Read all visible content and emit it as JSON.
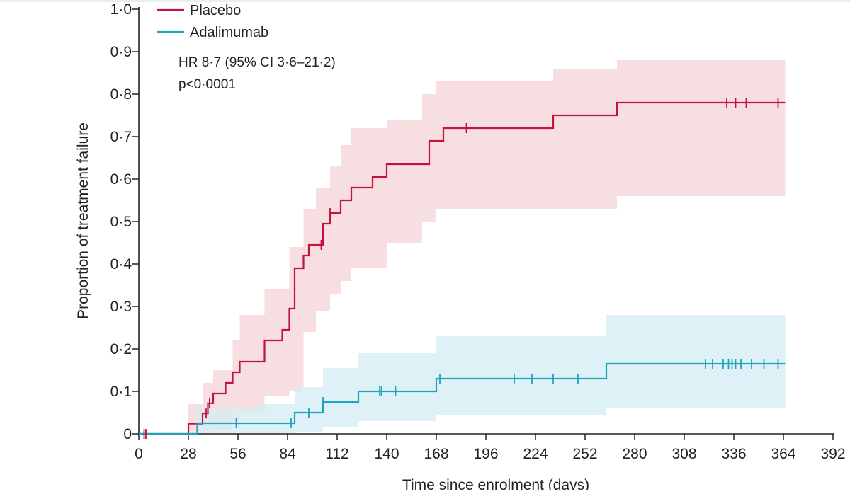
{
  "chart_data": {
    "type": "line",
    "subtype": "kaplan-meier-cumulative-incidence",
    "xlabel": "Time since enrolment (days)",
    "ylabel": "Proportion of treatment failure",
    "xlim": [
      0,
      392
    ],
    "ylim": [
      0,
      1.0
    ],
    "x_ticks": [
      0,
      28,
      56,
      84,
      112,
      140,
      168,
      196,
      224,
      252,
      280,
      308,
      336,
      364,
      392
    ],
    "y_ticks": [
      0,
      0.1,
      0.2,
      0.3,
      0.4,
      0.5,
      0.6,
      0.7,
      0.8,
      0.9,
      1.0
    ],
    "y_tick_labels": [
      "0",
      "0·1",
      "0·2",
      "0·3",
      "0·4",
      "0·5",
      "0·6",
      "0·7",
      "0·8",
      "0·9",
      "1·0"
    ],
    "annotations": [
      "HR 8·7 (95% CI 3·6–21·2)",
      "p<0·0001"
    ],
    "legend": {
      "position": "top-left",
      "entries": [
        "Placebo",
        "Adalimumab"
      ]
    },
    "series": [
      {
        "name": "Placebo",
        "color": "#c4123f",
        "band_color": "#f5d6d8",
        "steps": [
          [
            0,
            0
          ],
          [
            28,
            0.024
          ],
          [
            36,
            0.048
          ],
          [
            39,
            0.072
          ],
          [
            42,
            0.095
          ],
          [
            49,
            0.12
          ],
          [
            53,
            0.145
          ],
          [
            57,
            0.17
          ],
          [
            71,
            0.22
          ],
          [
            81,
            0.245
          ],
          [
            85,
            0.295
          ],
          [
            88,
            0.39
          ],
          [
            93,
            0.42
          ],
          [
            96,
            0.445
          ],
          [
            104,
            0.495
          ],
          [
            108,
            0.52
          ],
          [
            114,
            0.55
          ],
          [
            120,
            0.58
          ],
          [
            132,
            0.605
          ],
          [
            140,
            0.635
          ],
          [
            164,
            0.69
          ],
          [
            172,
            0.72
          ],
          [
            184,
            0.72
          ],
          [
            234,
            0.75
          ],
          [
            270,
            0.78
          ],
          [
            365,
            0.78
          ]
        ],
        "ci_upper": [
          [
            28,
            0.07
          ],
          [
            36,
            0.12
          ],
          [
            42,
            0.15
          ],
          [
            53,
            0.22
          ],
          [
            57,
            0.28
          ],
          [
            71,
            0.34
          ],
          [
            85,
            0.44
          ],
          [
            93,
            0.53
          ],
          [
            100,
            0.58
          ],
          [
            108,
            0.63
          ],
          [
            114,
            0.68
          ],
          [
            120,
            0.72
          ],
          [
            140,
            0.74
          ],
          [
            160,
            0.8
          ],
          [
            168,
            0.83
          ],
          [
            184,
            0.83
          ],
          [
            234,
            0.86
          ],
          [
            270,
            0.88
          ],
          [
            365,
            0.88
          ]
        ],
        "ci_lower": [
          [
            28,
            0.0
          ],
          [
            36,
            0.0
          ],
          [
            42,
            0.01
          ],
          [
            53,
            0.03
          ],
          [
            57,
            0.05
          ],
          [
            71,
            0.09
          ],
          [
            85,
            0.1
          ],
          [
            93,
            0.24
          ],
          [
            100,
            0.29
          ],
          [
            108,
            0.33
          ],
          [
            114,
            0.36
          ],
          [
            120,
            0.39
          ],
          [
            140,
            0.45
          ],
          [
            160,
            0.5
          ],
          [
            168,
            0.53
          ],
          [
            234,
            0.53
          ],
          [
            270,
            0.56
          ],
          [
            365,
            0.59
          ]
        ],
        "censor_x": [
          3,
          4,
          38,
          40,
          40,
          103,
          108,
          185,
          332,
          337,
          343,
          361
        ]
      },
      {
        "name": "Adalimumab",
        "color": "#1fa3bf",
        "band_color": "#d6edf5",
        "steps": [
          [
            0,
            0
          ],
          [
            33,
            0.025
          ],
          [
            88,
            0.05
          ],
          [
            104,
            0.075
          ],
          [
            124,
            0.1
          ],
          [
            168,
            0.13
          ],
          [
            264,
            0.165
          ],
          [
            365,
            0.165
          ]
        ],
        "ci_upper": [
          [
            33,
            0.06
          ],
          [
            67,
            0.07
          ],
          [
            88,
            0.11
          ],
          [
            104,
            0.155
          ],
          [
            124,
            0.19
          ],
          [
            168,
            0.23
          ],
          [
            264,
            0.28
          ],
          [
            365,
            0.28
          ]
        ],
        "ci_lower": [
          [
            33,
            0.0
          ],
          [
            88,
            0.005
          ],
          [
            104,
            0.015
          ],
          [
            124,
            0.03
          ],
          [
            168,
            0.045
          ],
          [
            264,
            0.06
          ],
          [
            365,
            0.07
          ]
        ],
        "censor_x": [
          55,
          86,
          96,
          104,
          136,
          137,
          145,
          170,
          212,
          222,
          234,
          248,
          320,
          324,
          330,
          333,
          335,
          337,
          340,
          346,
          353,
          361
        ]
      }
    ]
  }
}
